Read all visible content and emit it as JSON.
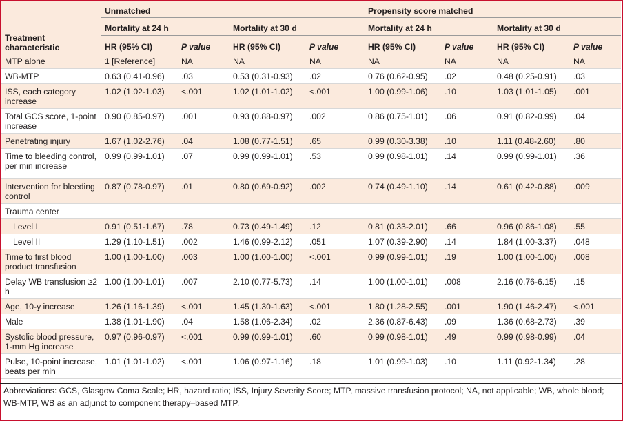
{
  "header": {
    "group_unmatched": "Unmatched",
    "group_matched": "Propensity score matched",
    "treatment_line1": "Treatment",
    "treatment_line2": "characteristic",
    "mort24": "Mortality at 24 h",
    "mort30": "Mortality at 30 d",
    "hr": "HR (95% CI)",
    "pvalue": "P value"
  },
  "rows": [
    {
      "label": "MTP alone",
      "cells": [
        "1 [Reference]",
        "NA",
        "NA",
        "NA",
        "NA",
        "NA",
        "NA",
        "NA"
      ]
    },
    {
      "label": "WB-MTP",
      "cells": [
        "0.63 (0.41-0.96)",
        ".03",
        "0.53 (0.31-0.93)",
        ".02",
        "0.76 (0.62-0.95)",
        ".02",
        "0.48 (0.25-0.91)",
        ".03"
      ]
    },
    {
      "label": "ISS, each category increase",
      "cells": [
        "1.02 (1.02-1.03)",
        "<.001",
        "1.02 (1.01-1.02)",
        "<.001",
        "1.00 (0.99-1.06)",
        ".10",
        "1.03 (1.01-1.05)",
        ".001"
      ]
    },
    {
      "label": "Total GCS score, 1-point increase",
      "cells": [
        "0.90 (0.85-0.97)",
        ".001",
        "0.93 (0.88-0.97)",
        ".002",
        "0.86 (0.75-1.01)",
        ".06",
        "0.91 (0.82-0.99)",
        ".04"
      ]
    },
    {
      "label": "Penetrating injury",
      "cells": [
        "1.67 (1.02-2.76)",
        ".04",
        "1.08 (0.77-1.51)",
        ".65",
        "0.99 (0.30-3.38)",
        ".10",
        "1.11 (0.48-2.60)",
        ".80"
      ]
    },
    {
      "label": "Time to bleeding control, per min increase",
      "cells": [
        "0.99 (0.99-1.01)",
        ".07",
        "0.99 (0.99-1.01)",
        ".53",
        "0.99 (0.98-1.01)",
        ".14",
        "0.99 (0.99-1.01)",
        ".36"
      ]
    },
    {
      "label": "Intervention for bleeding control",
      "cells": [
        "0.87 (0.78-0.97)",
        ".01",
        "0.80 (0.69-0.92)",
        ".002",
        "0.74 (0.49-1.10)",
        ".14",
        "0.61 (0.42-0.88)",
        ".009"
      ]
    },
    {
      "label": "Trauma center",
      "cells": [
        "",
        "",
        "",
        "",
        "",
        "",
        "",
        ""
      ]
    },
    {
      "label": "Level I",
      "cells": [
        "0.91 (0.51-1.67)",
        ".78",
        "0.73 (0.49-1.49)",
        ".12",
        "0.81 (0.33-2.01)",
        ".66",
        "0.96 (0.86-1.08)",
        ".55"
      ]
    },
    {
      "label": "Level II",
      "cells": [
        "1.29 (1.10-1.51)",
        ".002",
        "1.46 (0.99-2.12)",
        ".051",
        "1.07 (0.39-2.90)",
        ".14",
        "1.84 (1.00-3.37)",
        ".048"
      ]
    },
    {
      "label": "Time to first blood product transfusion",
      "cells": [
        "1.00 (1.00-1.00)",
        ".003",
        "1.00 (1.00-1.00)",
        "<.001",
        "0.99 (0.99-1.01)",
        ".19",
        "1.00 (1.00-1.00)",
        ".008"
      ]
    },
    {
      "label": "Delay WB transfusion ≥2 h",
      "cells": [
        "1.00 (1.00-1.01)",
        ".007",
        "2.10 (0.77-5.73)",
        ".14",
        "1.00 (1.00-1.01)",
        ".008",
        "2.16 (0.76-6.15)",
        ".15"
      ]
    },
    {
      "label": "Age, 10-y increase",
      "cells": [
        "1.26 (1.16-1.39)",
        "<.001",
        "1.45 (1.30-1.63)",
        "<.001",
        "1.80 (1.28-2.55)",
        ".001",
        "1.90 (1.46-2.47)",
        "<.001"
      ]
    },
    {
      "label": "Male",
      "cells": [
        "1.38 (1.01-1.90)",
        ".04",
        "1.58 (1.06-2.34)",
        ".02",
        "2.36 (0.87-6.43)",
        ".09",
        "1.36 (0.68-2.73)",
        ".39"
      ]
    },
    {
      "label": "Systolic blood pressure, 1-mm Hg increase",
      "cells": [
        "0.97 (0.96-0.97)",
        "<.001",
        "0.99 (0.99-1.01)",
        ".60",
        "0.99 (0.98-1.01)",
        ".49",
        "0.99 (0.98-0.99)",
        ".04"
      ]
    },
    {
      "label": "Pulse, 10-point increase, beats per min",
      "cells": [
        "1.01 (1.01-1.02)",
        "<.001",
        "1.06 (0.97-1.16)",
        ".18",
        "1.01 (0.99-1.03)",
        ".10",
        "1.11 (0.92-1.34)",
        ".28"
      ]
    }
  ],
  "footnote": "Abbreviations: GCS, Glasgow Coma Scale; HR, hazard ratio; ISS, Injury Severity Score; MTP, massive transfusion protocol; NA, not applicable; WB, whole blood; WB-MTP, WB as an adjunct to component therapy–based MTP."
}
